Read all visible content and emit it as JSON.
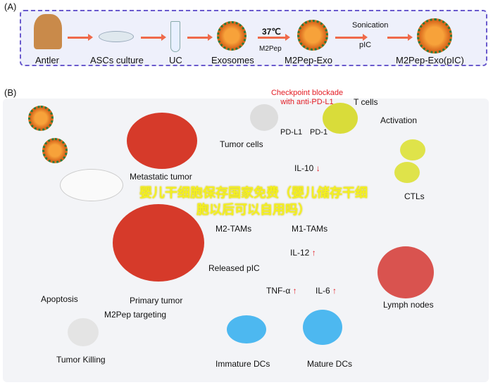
{
  "panel_a": {
    "tag": "(A)",
    "steps": [
      "Antler",
      "ASCs culture",
      "UC",
      "Exosomes",
      "M2Pep-Exo",
      "M2Pep-Exo(pIC)"
    ],
    "temp": "37℃",
    "m2pep": "M2Pep",
    "sonication": "Sonication",
    "pic": "pIC"
  },
  "panel_b": {
    "tag": "(B)",
    "checkpoint": "Checkpoint blockade with anti-PD-L1",
    "t_cells": "T cells",
    "pd_l1": "PD-L1",
    "pd_1": "PD-1",
    "tumor_cells": "Tumor cells",
    "activation": "Activation",
    "ctls": "CTLs",
    "metastatic": "Metastatic tumor",
    "il10": "IL-10",
    "m2_tams": "M2-TAMs",
    "m1_tams": "M1-TAMs",
    "il12": "IL-12",
    "released_pic": "Released pIC",
    "tnf": "TNF-α",
    "il6": "IL-6",
    "lymph": "Lymph nodes",
    "primary": "Primary tumor",
    "apoptosis": "Apoptosis",
    "m2pep_targeting": "M2Pep targeting",
    "tumor_killing": "Tumor Killing",
    "immature": "Immature DCs",
    "mature": "Mature DCs",
    "down": "↓",
    "up": "↑"
  },
  "overlay_text": "婴儿干细胞保存国家免费（婴儿储存干细胞以后可以自用吗）",
  "colors": {
    "frame": "#6a5acd",
    "arrow": "#ef6a4a",
    "red": "#e31b23",
    "overlay": "#f4f020"
  }
}
